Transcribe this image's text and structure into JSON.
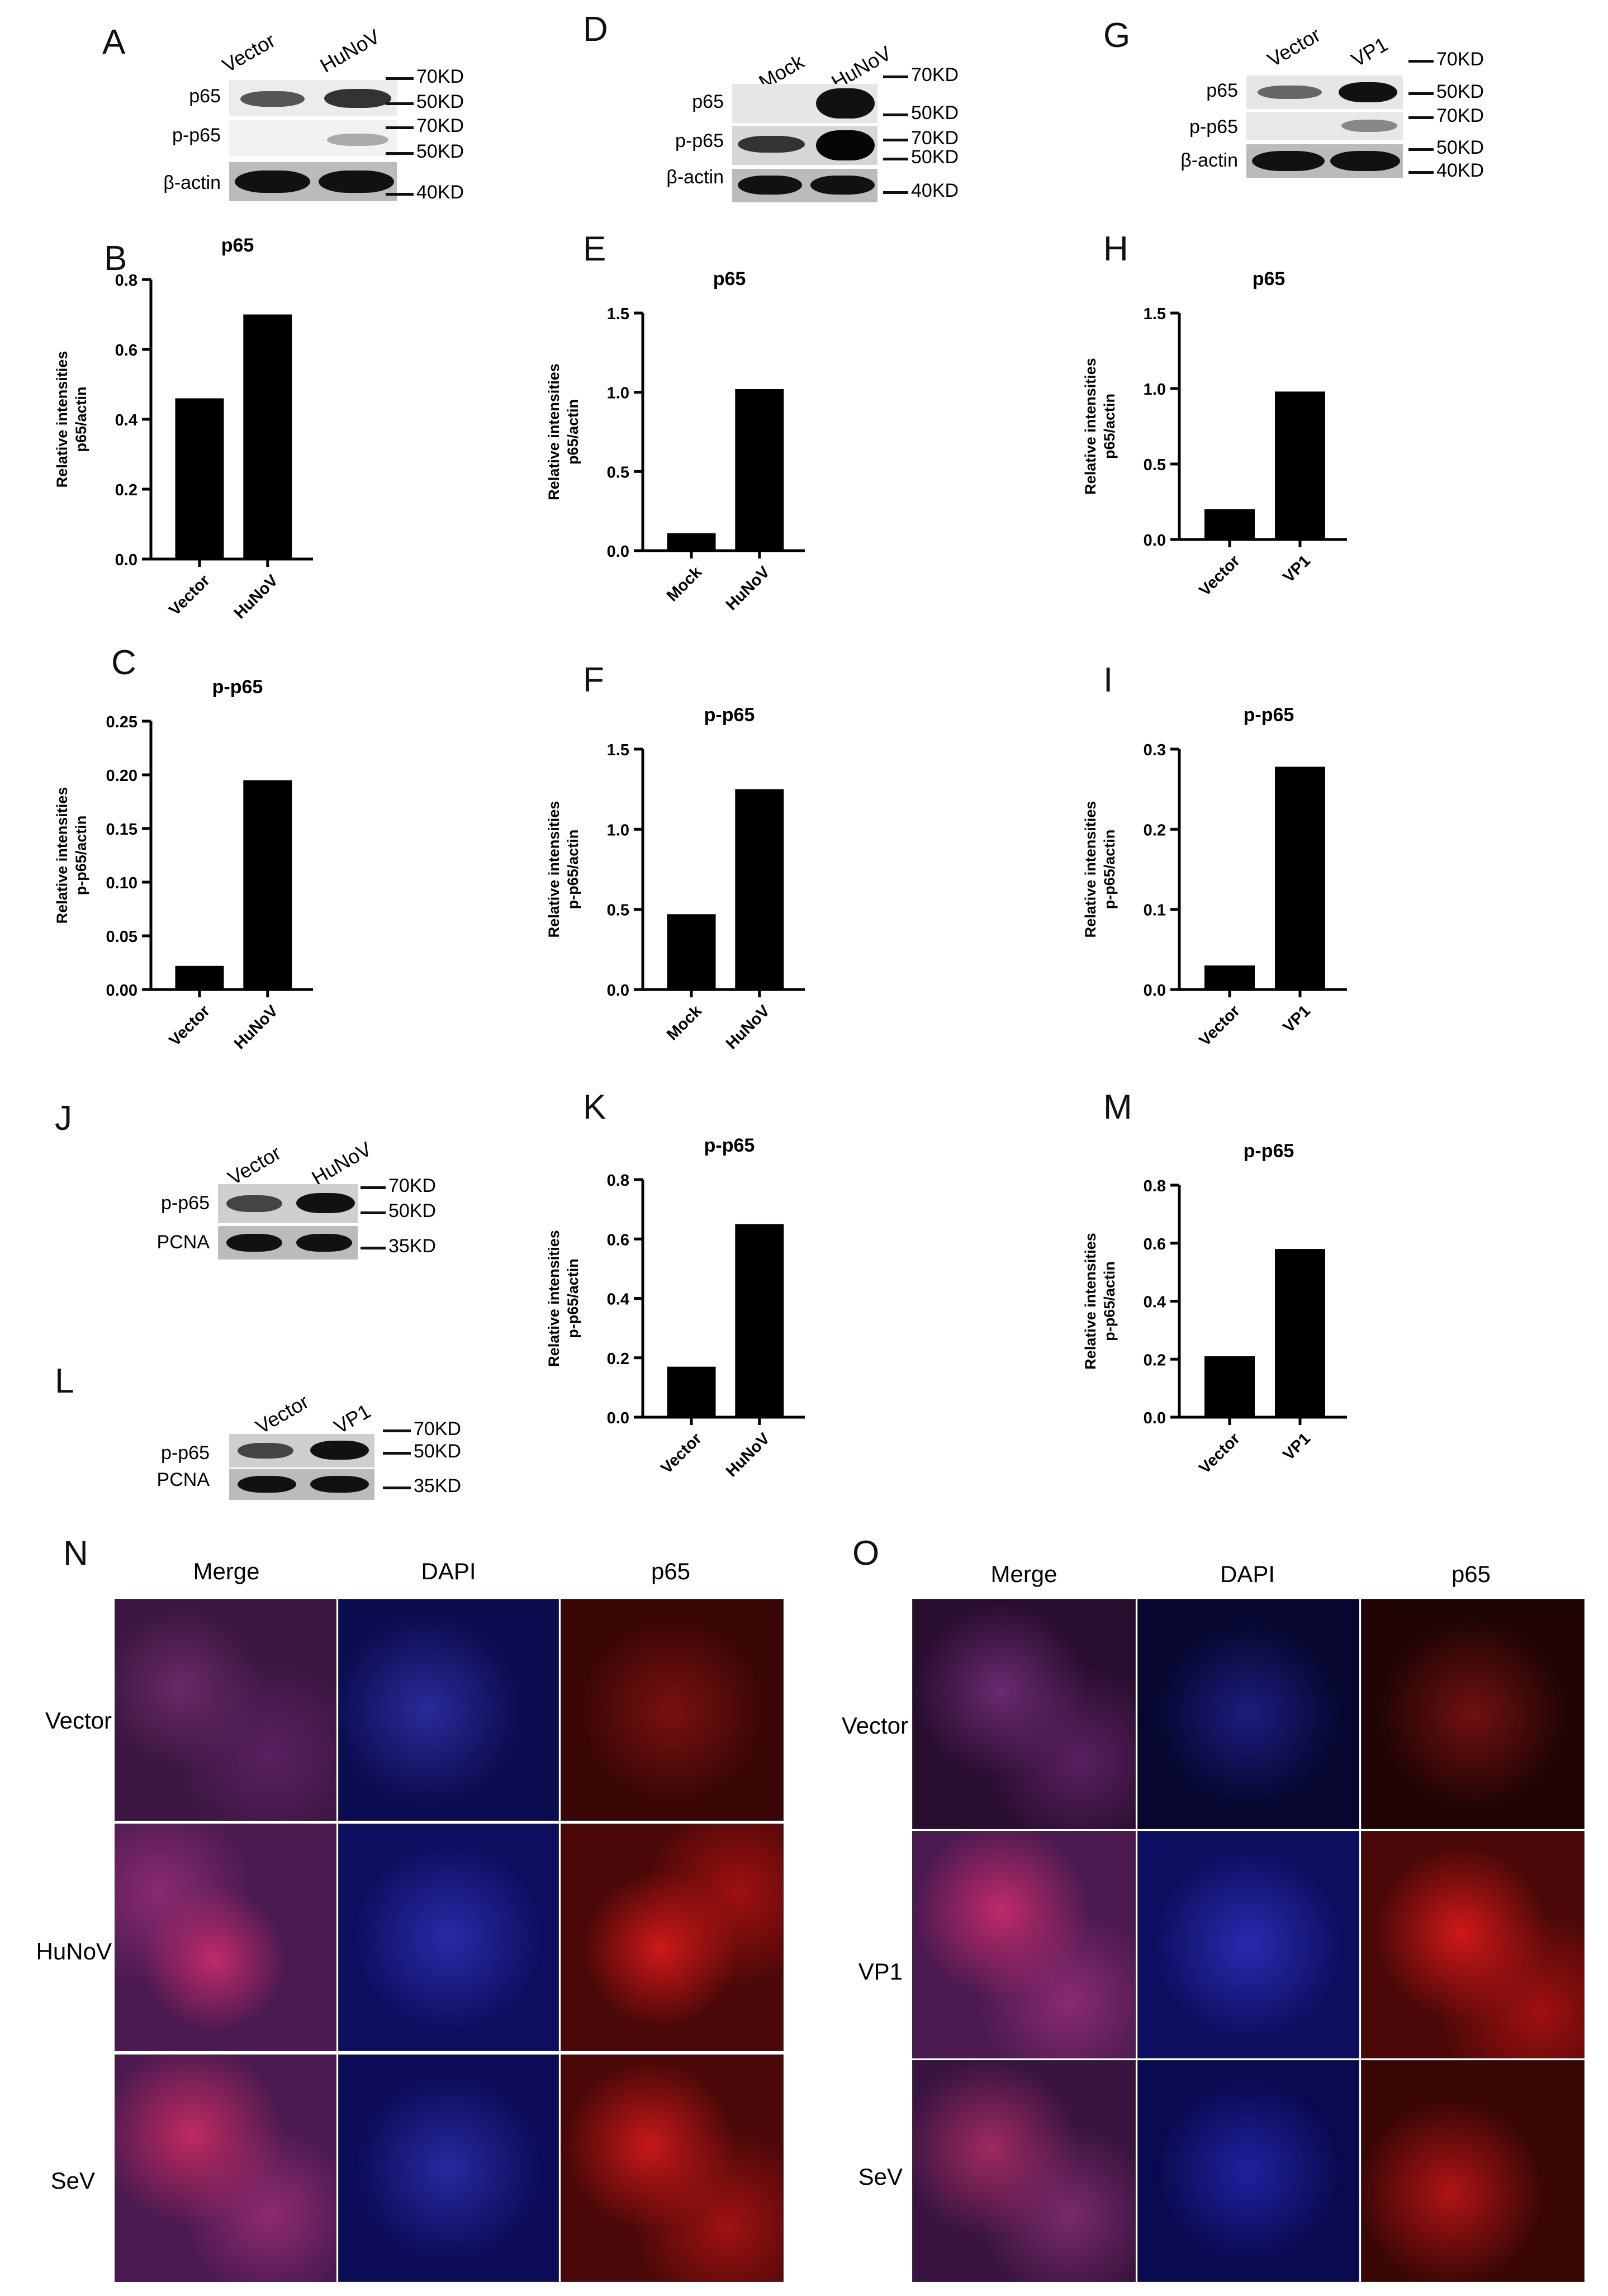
{
  "panel_labels": [
    "A",
    "B",
    "C",
    "D",
    "E",
    "F",
    "G",
    "H",
    "I",
    "J",
    "K",
    "L",
    "M",
    "N",
    "O"
  ],
  "blots": {
    "A": {
      "lanes": [
        "Vector",
        "HuNoV"
      ],
      "rows": [
        "p65",
        "p-p65",
        "β-actin"
      ],
      "markers": [
        "70KD",
        "50KD",
        "70KD",
        "50KD",
        "40KD"
      ]
    },
    "D": {
      "lanes": [
        "Mock",
        "HuNoV"
      ],
      "rows": [
        "p65",
        "p-p65",
        "β-actin"
      ],
      "markers": [
        "70KD",
        "50KD",
        "70KD",
        "50KD",
        "40KD"
      ]
    },
    "G": {
      "lanes": [
        "Vector",
        "VP1"
      ],
      "rows": [
        "p65",
        "p-p65",
        "β-actin"
      ],
      "markers": [
        "70KD",
        "50KD",
        "70KD",
        "50KD",
        "40KD"
      ]
    },
    "J": {
      "lanes": [
        "Vector",
        "HuNoV"
      ],
      "rows": [
        "p-p65",
        "PCNA"
      ],
      "markers": [
        "70KD",
        "50KD",
        "35KD"
      ]
    },
    "L": {
      "lanes": [
        "Vector",
        "VP1"
      ],
      "rows": [
        "p-p65",
        "PCNA"
      ],
      "markers": [
        "70KD",
        "50KD",
        "35KD"
      ]
    }
  },
  "chart_data": [
    {
      "id": "B",
      "type": "bar",
      "title": "p65",
      "ylabel": [
        "Relative intensities",
        "p65/actin"
      ],
      "categories": [
        "Vector",
        "HuNoV"
      ],
      "values": [
        0.46,
        0.7
      ],
      "ylim": [
        0,
        0.8
      ],
      "yticks": [
        "0.0",
        "0.2",
        "0.4",
        "0.6",
        "0.8"
      ]
    },
    {
      "id": "C",
      "type": "bar",
      "title": "p-p65",
      "ylabel": [
        "Relative intensities",
        "p-p65/actin"
      ],
      "categories": [
        "Vector",
        "HuNoV"
      ],
      "values": [
        0.022,
        0.195
      ],
      "ylim": [
        0,
        0.25
      ],
      "yticks": [
        "0.00",
        "0.05",
        "0.10",
        "0.15",
        "0.20",
        "0.25"
      ]
    },
    {
      "id": "E",
      "type": "bar",
      "title": "p65",
      "ylabel": [
        "Relative intensities",
        "p65/actin"
      ],
      "categories": [
        "Mock",
        "HuNoV"
      ],
      "values": [
        0.11,
        1.02
      ],
      "ylim": [
        0,
        1.5
      ],
      "yticks": [
        "0.0",
        "0.5",
        "1.0",
        "1.5"
      ]
    },
    {
      "id": "F",
      "type": "bar",
      "title": "p-p65",
      "ylabel": [
        "Relative intensities",
        "p-p65/actin"
      ],
      "categories": [
        "Mock",
        "HuNoV"
      ],
      "values": [
        0.47,
        1.25
      ],
      "ylim": [
        0,
        1.5
      ],
      "yticks": [
        "0.0",
        "0.5",
        "1.0",
        "1.5"
      ]
    },
    {
      "id": "H",
      "type": "bar",
      "title": "p65",
      "ylabel": [
        "Relative intensities",
        "p65/actin"
      ],
      "categories": [
        "Vector",
        "VP1"
      ],
      "values": [
        0.2,
        0.98
      ],
      "ylim": [
        0,
        1.5
      ],
      "yticks": [
        "0.0",
        "0.5",
        "1.0",
        "1.5"
      ]
    },
    {
      "id": "I",
      "type": "bar",
      "title": "p-p65",
      "ylabel": [
        "Relative intensities",
        "p-p65/actin"
      ],
      "categories": [
        "Vector",
        "VP1"
      ],
      "values": [
        0.03,
        0.278
      ],
      "ylim": [
        0,
        0.3
      ],
      "yticks": [
        "0.0",
        "0.1",
        "0.2",
        "0.3"
      ]
    },
    {
      "id": "K",
      "type": "bar",
      "title": "p-p65",
      "ylabel": [
        "Relative intensities",
        "p-p65/actin"
      ],
      "categories": [
        "Vector",
        "HuNoV"
      ],
      "values": [
        0.17,
        0.65
      ],
      "ylim": [
        0,
        0.8
      ],
      "yticks": [
        "0.0",
        "0.2",
        "0.4",
        "0.6",
        "0.8"
      ]
    },
    {
      "id": "M",
      "type": "bar",
      "title": "p-p65",
      "ylabel": [
        "Relative intensities",
        "p-p65/actin"
      ],
      "categories": [
        "Vector",
        "VP1"
      ],
      "values": [
        0.21,
        0.58
      ],
      "ylim": [
        0,
        0.8
      ],
      "yticks": [
        "0.0",
        "0.2",
        "0.4",
        "0.6",
        "0.8"
      ]
    }
  ],
  "if_panels": {
    "N": {
      "columns": [
        "Merge",
        "DAPI",
        "p65"
      ],
      "rows": [
        "Vector",
        "HuNoV",
        "SeV"
      ]
    },
    "O": {
      "columns": [
        "Merge",
        "DAPI",
        "p65"
      ],
      "rows": [
        "Vector",
        "VP1",
        "SeV"
      ]
    }
  },
  "colors": {
    "bar": "#000000",
    "dapi": "#1a1aa0",
    "p65": "#b01010",
    "merge_bg": "#3a1030"
  }
}
